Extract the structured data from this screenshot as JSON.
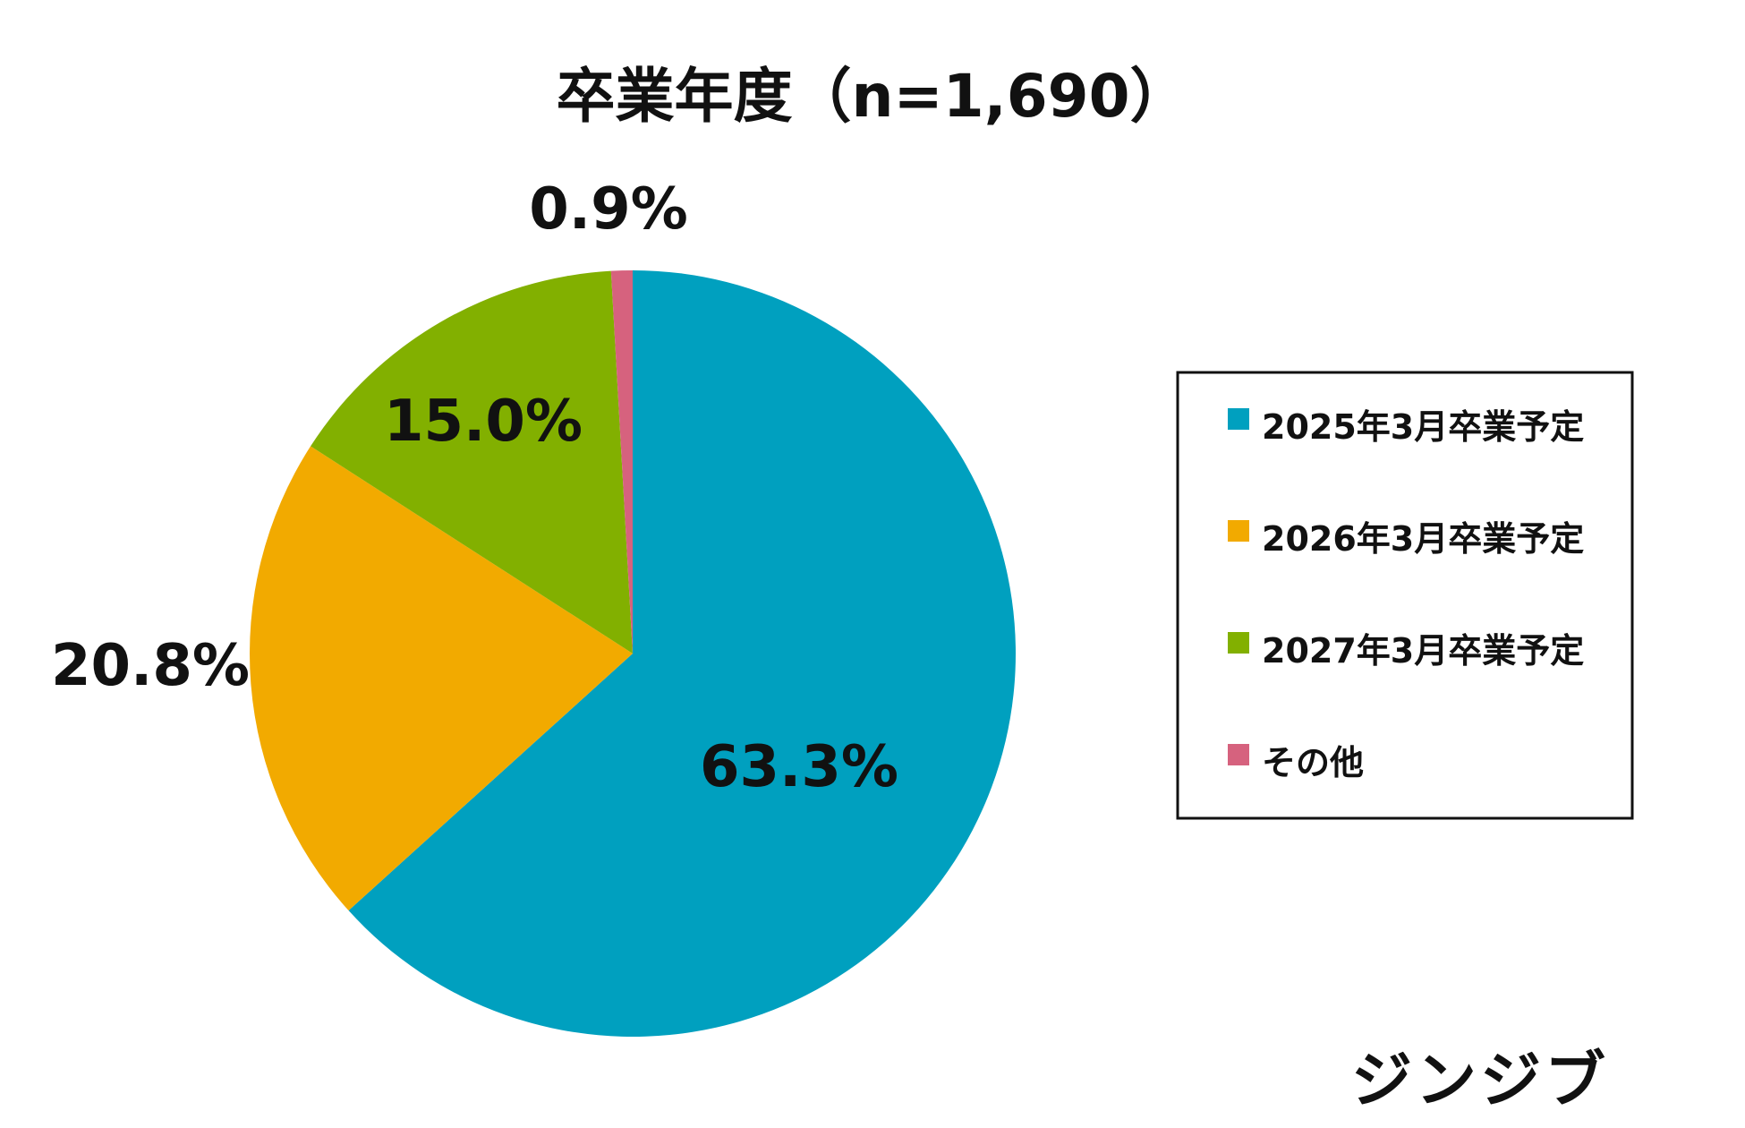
{
  "chart_data": {
    "type": "pie",
    "title": "卒業年度（n=1,690）",
    "slices": [
      {
        "label": "2025年3月卒業予定",
        "value": 63.3,
        "display": "63.3%",
        "color": "#00A0BF"
      },
      {
        "label": "2026年3月卒業予定",
        "value": 20.8,
        "display": "20.8%",
        "color": "#F2AA00"
      },
      {
        "label": "2027年3月卒業予定",
        "value": 15.0,
        "display": "15.0%",
        "color": "#82B000"
      },
      {
        "label": "その他",
        "value": 0.9,
        "display": "0.9%",
        "color": "#D6627E"
      }
    ],
    "start_angle": "12 o'clock",
    "direction": "clockwise",
    "legend_position": "right"
  },
  "brand": {
    "text": "ジンジブ"
  }
}
